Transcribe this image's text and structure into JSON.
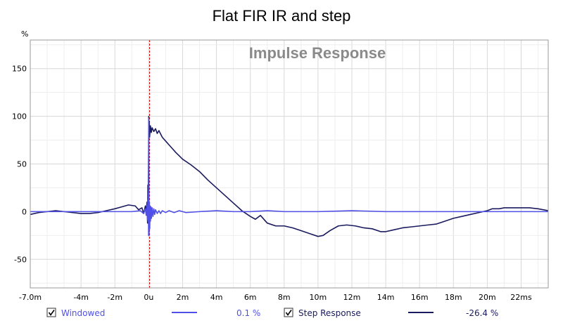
{
  "chart_data": {
    "type": "line",
    "title": "Flat FIR IR and step",
    "watermark": "Impulse Response",
    "ylabel": "%",
    "xlabel": "",
    "xlim": [
      -7.0,
      23.6
    ],
    "ylim": [
      -80,
      180
    ],
    "x_unit": "ms",
    "grid": true,
    "xticks": [
      {
        "value": -7.0,
        "label": "-7.0m"
      },
      {
        "value": -4,
        "label": "-4m"
      },
      {
        "value": -2,
        "label": "-2m"
      },
      {
        "value": 0,
        "label": "0u"
      },
      {
        "value": 2,
        "label": "2m"
      },
      {
        "value": 4,
        "label": "4m"
      },
      {
        "value": 6,
        "label": "6m"
      },
      {
        "value": 8,
        "label": "8m"
      },
      {
        "value": 10,
        "label": "10m"
      },
      {
        "value": 12,
        "label": "12m"
      },
      {
        "value": 14,
        "label": "14m"
      },
      {
        "value": 16,
        "label": "16m"
      },
      {
        "value": 18,
        "label": "18m"
      },
      {
        "value": 20,
        "label": "20m"
      },
      {
        "value": 22,
        "label": "22ms"
      }
    ],
    "yticks": [
      {
        "value": 150,
        "label": "150"
      },
      {
        "value": 100,
        "label": "100"
      },
      {
        "value": 50,
        "label": "50"
      },
      {
        "value": 0,
        "label": "0"
      },
      {
        "value": -50,
        "label": "-50"
      }
    ],
    "marker_x": 0.05,
    "colors": {
      "grid": "#d8d8d8",
      "frame": "#9a9a9a",
      "marker": "#cc0000"
    },
    "series": [
      {
        "name": "Step Response",
        "color": "#1a1a5e",
        "x": [
          -7.0,
          -6.5,
          -6.0,
          -5.5,
          -5.0,
          -4.5,
          -4.0,
          -3.5,
          -3.0,
          -2.5,
          -2.0,
          -1.6,
          -1.2,
          -0.8,
          -0.6,
          -0.4,
          -0.3,
          -0.2,
          -0.15,
          -0.1,
          -0.07,
          -0.05,
          -0.03,
          -0.01,
          0.0,
          0.01,
          0.03,
          0.05,
          0.1,
          0.15,
          0.2,
          0.3,
          0.4,
          0.5,
          0.6,
          0.8,
          1.0,
          1.2,
          1.4,
          1.6,
          2.0,
          2.5,
          3.0,
          3.5,
          4.0,
          4.5,
          5.0,
          5.5,
          6.0,
          6.3,
          6.6,
          7.0,
          7.5,
          8.0,
          8.5,
          9.0,
          9.5,
          10.0,
          10.3,
          10.7,
          11.2,
          11.7,
          12.2,
          12.7,
          13.2,
          13.7,
          14.0,
          14.5,
          15.0,
          15.5,
          16.0,
          16.5,
          17.0,
          17.5,
          18.0,
          18.5,
          19.0,
          19.5,
          20.0,
          20.3,
          20.7,
          21.0,
          21.5,
          22.0,
          22.5,
          23.0,
          23.3,
          23.6
        ],
        "values": [
          -3,
          -1,
          0,
          1,
          0,
          -1,
          -2,
          -2,
          -1,
          1,
          3,
          5,
          7,
          6,
          2,
          4,
          -2,
          6,
          0,
          10,
          -12,
          28,
          4,
          62,
          100,
          85,
          95,
          78,
          90,
          83,
          88,
          84,
          87,
          82,
          85,
          78,
          74,
          70,
          66,
          62,
          55,
          49,
          42,
          33,
          25,
          17,
          9,
          1,
          -5,
          -8,
          -4,
          -12,
          -15,
          -15,
          -17,
          -20,
          -23,
          -26,
          -25,
          -20,
          -15,
          -14,
          -15,
          -17,
          -18,
          -21,
          -21,
          -19,
          -17,
          -16,
          -15,
          -14,
          -13,
          -10,
          -7,
          -5,
          -3,
          -1,
          1,
          3,
          3,
          4,
          4,
          4,
          4,
          3,
          2,
          1
        ]
      },
      {
        "name": "Windowed",
        "color": "#5050e8",
        "x": [
          -7.0,
          -6.0,
          -5.0,
          -4.0,
          -3.0,
          -2.0,
          -1.0,
          -0.5,
          -0.3,
          -0.2,
          -0.15,
          -0.1,
          -0.08,
          -0.06,
          -0.04,
          -0.02,
          -0.01,
          0.0,
          0.01,
          0.02,
          0.04,
          0.06,
          0.08,
          0.1,
          0.13,
          0.16,
          0.2,
          0.25,
          0.3,
          0.35,
          0.4,
          0.5,
          0.6,
          0.7,
          0.8,
          1.0,
          1.2,
          1.5,
          1.8,
          2.2,
          3.0,
          4.0,
          5.0,
          6.0,
          7.0,
          8.0,
          10.0,
          12.0,
          14.0,
          16.0,
          18.0,
          20.0,
          22.0,
          23.6
        ],
        "values": [
          0,
          0,
          0,
          0,
          0,
          0,
          0,
          1,
          -2,
          3,
          -4,
          6,
          -8,
          12,
          -10,
          20,
          -25,
          98,
          40,
          -25,
          10,
          -18,
          6,
          -10,
          5,
          -7,
          4,
          -5,
          3,
          -3,
          2,
          -2,
          1,
          -2,
          1,
          -1,
          1,
          -1,
          1,
          -1,
          0,
          1,
          0,
          0,
          1,
          0,
          0,
          1,
          0,
          0,
          0,
          0,
          0,
          0
        ]
      }
    ]
  },
  "legend": {
    "items": [
      {
        "label": "Windowed",
        "value": "0.1 %",
        "checked": true,
        "color": "#5050e8"
      },
      {
        "label": "Step Response",
        "value": "-26.4 %",
        "checked": true,
        "color": "#1a1a5e"
      }
    ]
  }
}
